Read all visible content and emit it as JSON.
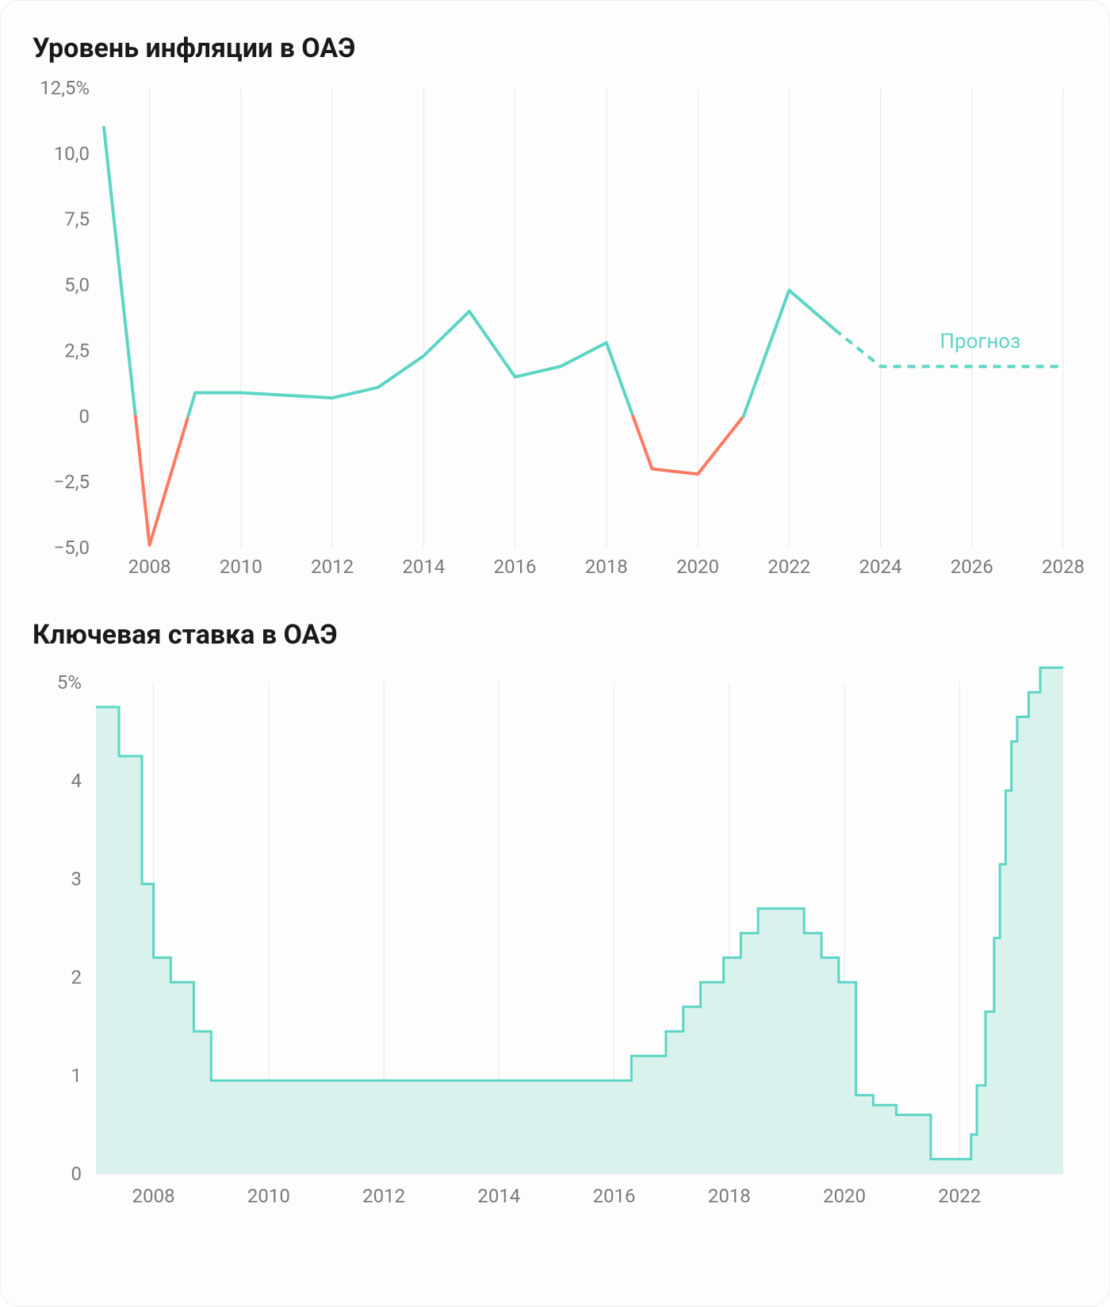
{
  "background_color": "#fdfdfd",
  "inflation_chart": {
    "title": "Уровень инфляции в ОАЭ",
    "type": "line",
    "x_years": [
      2007,
      2008,
      2009,
      2010,
      2011,
      2012,
      2013,
      2014,
      2015,
      2016,
      2017,
      2018,
      2019,
      2020,
      2021,
      2022,
      2023,
      2024,
      2025,
      2026,
      2027,
      2028
    ],
    "actual_values": [
      11.0,
      -4.9,
      0.9,
      0.9,
      0.8,
      0.7,
      1.1,
      2.3,
      4.0,
      1.5,
      1.9,
      2.8,
      -2.0,
      -2.2,
      0.0,
      4.8,
      3.3
    ],
    "forecast_values": [
      3.3,
      1.9,
      1.9,
      1.9,
      1.9,
      1.9
    ],
    "forecast_start_year": 2023,
    "forecast_label": "Прогноз",
    "positive_color": "#5dd5c4",
    "negative_color": "#ff7961",
    "forecast_color": "#5dd5c4",
    "grid_color": "#e8e8e8",
    "tick_text_color": "#7a7a7a",
    "line_width": 4,
    "forecast_dash": "10,8",
    "ylim": [
      -5.0,
      12.5
    ],
    "y_ticks": [
      -5.0,
      -2.5,
      0,
      2.5,
      5.0,
      7.5,
      10.0,
      12.5
    ],
    "y_tick_labels": [
      "−5,0",
      "−2,5",
      "0",
      "2,5",
      "5,0",
      "7,5",
      "10,0",
      "12,5%"
    ],
    "x_tick_years": [
      2008,
      2010,
      2012,
      2014,
      2016,
      2018,
      2020,
      2022,
      2024,
      2026,
      2028
    ],
    "title_fontsize": 34,
    "label_fontsize": 24,
    "forecast_label_fontsize": 26
  },
  "rate_chart": {
    "title": "Ключевая ставка в ОАЭ",
    "type": "step-area",
    "line_color": "#5dd5c4",
    "fill_color": "#d9f2ed",
    "grid_color": "#e8e8e8",
    "tick_text_color": "#7a7a7a",
    "line_width": 3,
    "ylim": [
      0,
      5
    ],
    "y_ticks": [
      0,
      1,
      2,
      3,
      4,
      5
    ],
    "y_tick_labels": [
      "0",
      "1",
      "2",
      "3",
      "4",
      "5%"
    ],
    "x_tick_years": [
      2008,
      2010,
      2012,
      2014,
      2016,
      2018,
      2020,
      2022
    ],
    "x_range": [
      2007.0,
      2023.8
    ],
    "steps": [
      [
        2007.0,
        4.75
      ],
      [
        2007.4,
        4.25
      ],
      [
        2007.8,
        2.95
      ],
      [
        2008.0,
        2.2
      ],
      [
        2008.3,
        1.95
      ],
      [
        2008.7,
        1.45
      ],
      [
        2009.0,
        0.95
      ],
      [
        2016.0,
        0.95
      ],
      [
        2016.3,
        1.2
      ],
      [
        2016.9,
        1.45
      ],
      [
        2017.2,
        1.7
      ],
      [
        2017.5,
        1.95
      ],
      [
        2017.9,
        2.2
      ],
      [
        2018.2,
        2.45
      ],
      [
        2018.5,
        2.7
      ],
      [
        2019.1,
        2.7
      ],
      [
        2019.3,
        2.45
      ],
      [
        2019.6,
        2.2
      ],
      [
        2019.9,
        1.95
      ],
      [
        2020.2,
        0.8
      ],
      [
        2020.5,
        0.7
      ],
      [
        2020.9,
        0.6
      ],
      [
        2021.3,
        0.6
      ],
      [
        2021.5,
        0.15
      ],
      [
        2022.0,
        0.15
      ],
      [
        2022.2,
        0.4
      ],
      [
        2022.3,
        0.9
      ],
      [
        2022.45,
        1.65
      ],
      [
        2022.6,
        2.4
      ],
      [
        2022.7,
        3.15
      ],
      [
        2022.8,
        3.9
      ],
      [
        2022.9,
        4.4
      ],
      [
        2023.0,
        4.65
      ],
      [
        2023.2,
        4.9
      ],
      [
        2023.4,
        5.15
      ],
      [
        2023.8,
        5.15
      ]
    ],
    "title_fontsize": 34,
    "label_fontsize": 24
  }
}
